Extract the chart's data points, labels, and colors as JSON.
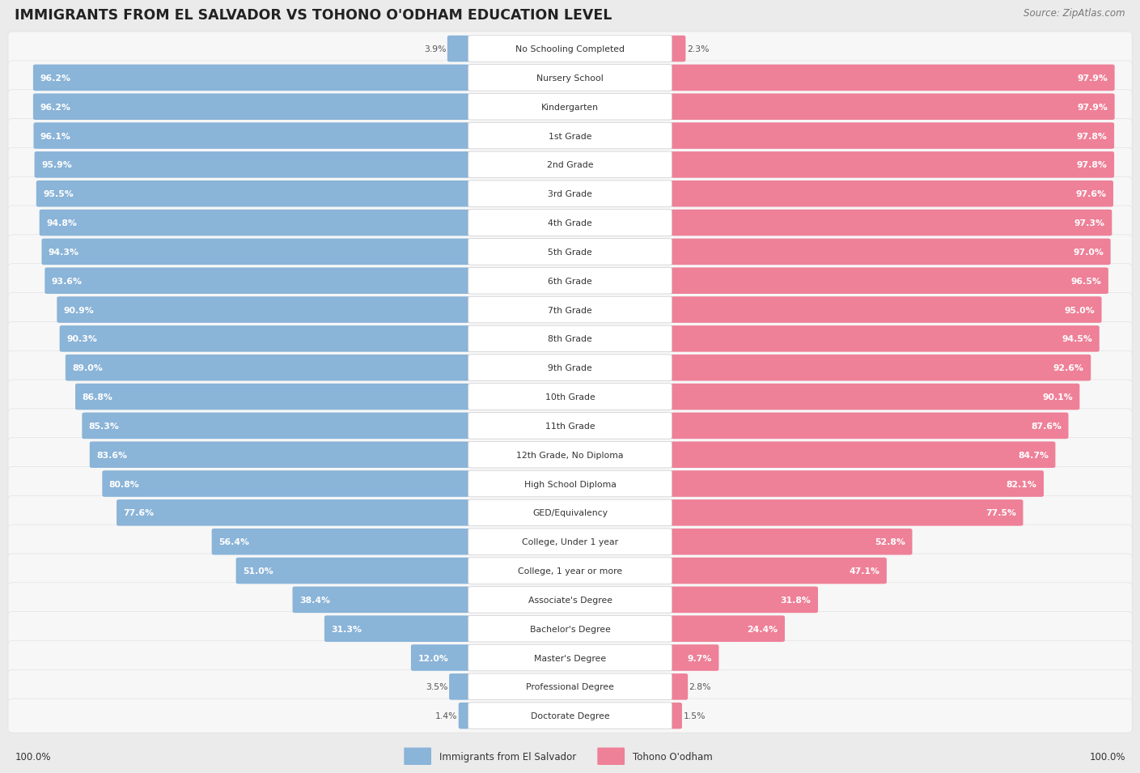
{
  "title": "IMMIGRANTS FROM EL SALVADOR VS TOHONO O'ODHAM EDUCATION LEVEL",
  "source": "Source: ZipAtlas.com",
  "categories": [
    "No Schooling Completed",
    "Nursery School",
    "Kindergarten",
    "1st Grade",
    "2nd Grade",
    "3rd Grade",
    "4th Grade",
    "5th Grade",
    "6th Grade",
    "7th Grade",
    "8th Grade",
    "9th Grade",
    "10th Grade",
    "11th Grade",
    "12th Grade, No Diploma",
    "High School Diploma",
    "GED/Equivalency",
    "College, Under 1 year",
    "College, 1 year or more",
    "Associate's Degree",
    "Bachelor's Degree",
    "Master's Degree",
    "Professional Degree",
    "Doctorate Degree"
  ],
  "left_values": [
    3.9,
    96.2,
    96.2,
    96.1,
    95.9,
    95.5,
    94.8,
    94.3,
    93.6,
    90.9,
    90.3,
    89.0,
    86.8,
    85.3,
    83.6,
    80.8,
    77.6,
    56.4,
    51.0,
    38.4,
    31.3,
    12.0,
    3.5,
    1.4
  ],
  "right_values": [
    2.3,
    97.9,
    97.9,
    97.8,
    97.8,
    97.6,
    97.3,
    97.0,
    96.5,
    95.0,
    94.5,
    92.6,
    90.1,
    87.6,
    84.7,
    82.1,
    77.5,
    52.8,
    47.1,
    31.8,
    24.4,
    9.7,
    2.8,
    1.5
  ],
  "left_color": "#8ab4d8",
  "right_color": "#ee8098",
  "bg_color": "#ebebeb",
  "row_bg_color": "#f7f7f7",
  "left_label": "Immigrants from El Salvador",
  "right_label": "Tohono O'odham",
  "axis_max": 100.0,
  "title_fontsize": 12.5,
  "source_fontsize": 8.5,
  "bar_fontsize": 7.8,
  "cat_fontsize": 7.8
}
